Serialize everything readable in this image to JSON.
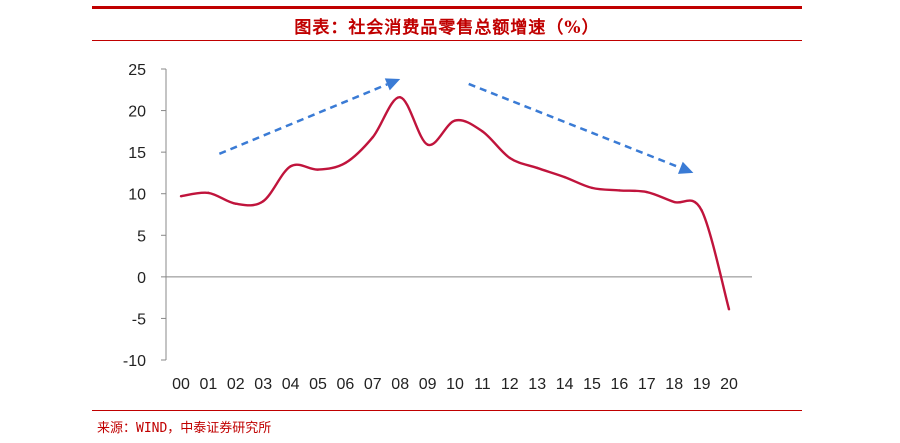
{
  "title": "图表：社会消费品零售总额增速（%）",
  "source": "来源：WIND，中泰证券研究所",
  "colors": {
    "accent": "#c00000",
    "line": "#c0143c",
    "arrow": "#3a7bd5"
  },
  "chart_data": {
    "type": "line",
    "title": "图表：社会消费品零售总额增速（%）",
    "xlabel": "",
    "ylabel": "",
    "ylim": [
      -10,
      25
    ],
    "yticks": [
      "25",
      "20",
      "15",
      "10",
      "5",
      "0",
      "-5",
      "-10"
    ],
    "categories": [
      "00",
      "01",
      "02",
      "03",
      "04",
      "05",
      "06",
      "07",
      "08",
      "09",
      "10",
      "11",
      "12",
      "13",
      "14",
      "15",
      "16",
      "17",
      "18",
      "19",
      "20"
    ],
    "x": [
      0,
      1,
      2,
      3,
      4,
      5,
      6,
      7,
      8,
      9,
      10,
      11,
      12,
      13,
      14,
      15,
      16,
      17,
      18,
      19,
      20
    ],
    "series": [
      {
        "values": [
          9.7,
          10.1,
          8.8,
          9.1,
          13.3,
          12.9,
          13.7,
          16.8,
          21.6,
          15.9,
          18.8,
          17.5,
          14.3,
          13.1,
          12.0,
          10.7,
          10.4,
          10.2,
          9.0,
          8.0,
          -3.9
        ]
      }
    ],
    "annotations": [
      {
        "type": "arrow",
        "style": "dashed",
        "direction": "up",
        "from": [
          1.4,
          14.8
        ],
        "to": [
          8.0,
          23.8
        ]
      },
      {
        "type": "arrow",
        "style": "dashed",
        "direction": "down",
        "from": [
          10.5,
          23.2
        ],
        "to": [
          18.7,
          12.5
        ]
      }
    ],
    "grid": false,
    "legend": "none"
  }
}
